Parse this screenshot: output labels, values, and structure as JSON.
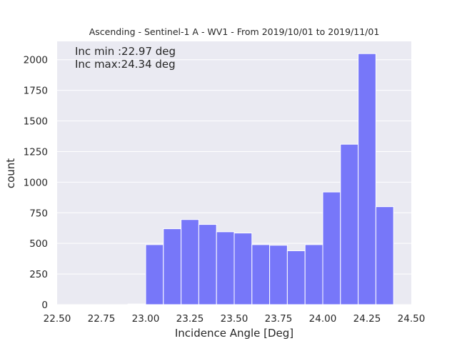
{
  "chart_data": {
    "type": "bar",
    "title": "Ascending - Sentinel-1 A - WV1 - From 2019/10/01 to 2019/11/01",
    "xlabel": "Incidence Angle [Deg]",
    "ylabel": "count",
    "xlim": [
      22.5,
      24.5
    ],
    "ylim": [
      0,
      2150
    ],
    "xticks": [
      "22.50",
      "22.75",
      "23.00",
      "23.25",
      "23.50",
      "23.75",
      "24.00",
      "24.25",
      "24.50"
    ],
    "xtick_values": [
      22.5,
      22.75,
      23.0,
      23.25,
      23.5,
      23.75,
      24.0,
      24.25,
      24.5
    ],
    "yticks": [
      "0",
      "250",
      "500",
      "750",
      "1000",
      "1250",
      "1500",
      "1750",
      "2000"
    ],
    "ytick_values": [
      0,
      250,
      500,
      750,
      1000,
      1250,
      1500,
      1750,
      2000
    ],
    "grid": true,
    "annotations": [
      "Inc min :22.97 deg",
      "Inc max:24.34 deg"
    ],
    "bin_edges": [
      22.9,
      23.0,
      23.1,
      23.2,
      23.3,
      23.4,
      23.5,
      23.6,
      23.7,
      23.8,
      23.9,
      24.0,
      24.1,
      24.2,
      24.3,
      24.4
    ],
    "values": [
      5,
      490,
      620,
      695,
      655,
      595,
      585,
      490,
      485,
      440,
      490,
      920,
      1310,
      2050,
      800
    ],
    "bar_color": "#7777f9",
    "background_color": "#eaeaf2"
  }
}
